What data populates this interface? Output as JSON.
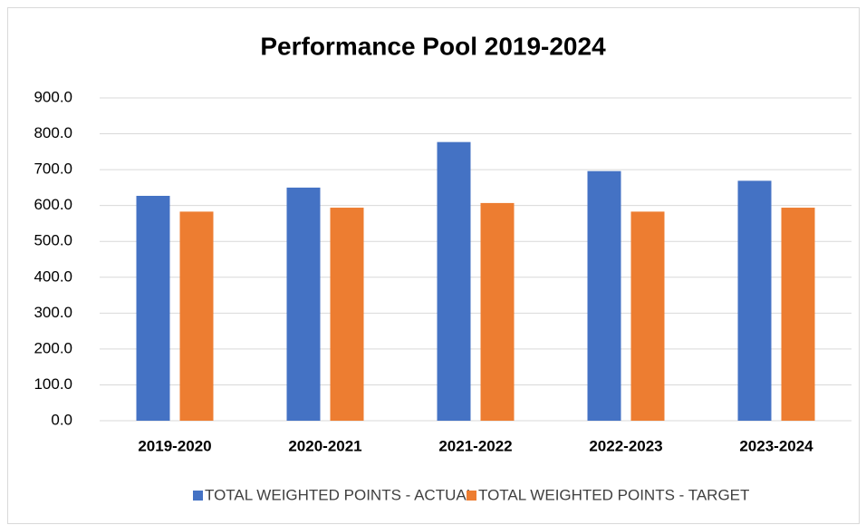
{
  "chart_data": {
    "type": "bar",
    "title": "Performance Pool 2019-2024",
    "categories": [
      "2019-2020",
      "2020-2021",
      "2021-2022",
      "2022-2023",
      "2023-2024"
    ],
    "series": [
      {
        "name": "TOTAL WEIGHTED POINTS - ACTUAL",
        "color": "#4472c4",
        "values": [
          627,
          650,
          777,
          696,
          669
        ]
      },
      {
        "name": "TOTAL WEIGHTED POINTS - TARGET",
        "color": "#ed7d31",
        "values": [
          583,
          594,
          607,
          583,
          594
        ]
      }
    ],
    "ylim": [
      0,
      900
    ],
    "yticks": [
      {
        "value": 0,
        "label": "0.0"
      },
      {
        "value": 100,
        "label": "100.0"
      },
      {
        "value": 200,
        "label": "200.0"
      },
      {
        "value": 300,
        "label": "300.0"
      },
      {
        "value": 400,
        "label": "400.0"
      },
      {
        "value": 500,
        "label": "500.0"
      },
      {
        "value": 600,
        "label": "600.0"
      },
      {
        "value": 700,
        "label": "700.0"
      },
      {
        "value": 800,
        "label": "800.0"
      },
      {
        "value": 900,
        "label": "900.0"
      }
    ],
    "grid": true,
    "legend": "bottom"
  }
}
